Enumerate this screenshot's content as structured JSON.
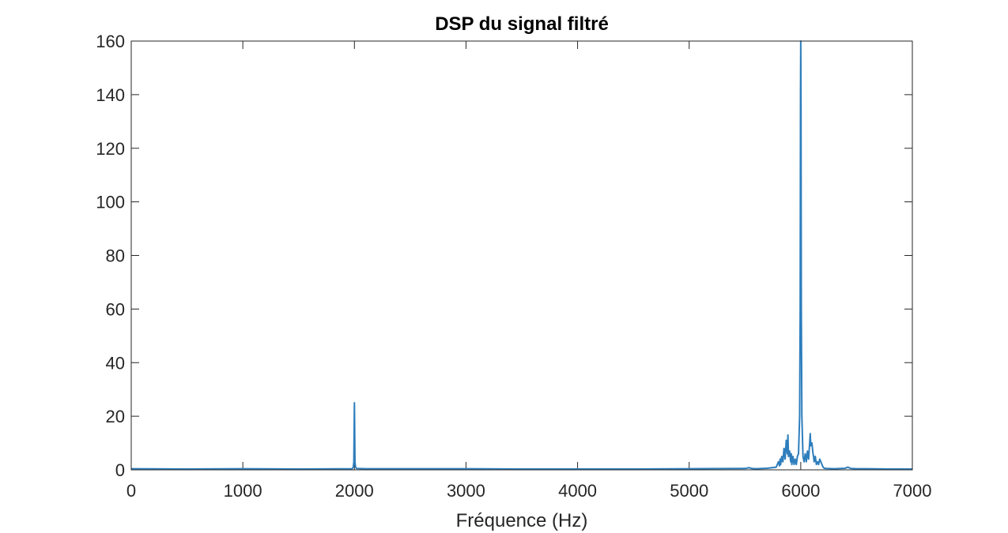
{
  "chart_data": {
    "type": "line",
    "title": "DSP du signal filtré",
    "xlabel": "Fréquence (Hz)",
    "ylabel": "",
    "xlim": [
      0,
      7000
    ],
    "ylim": [
      0,
      160
    ],
    "xticks": [
      0,
      1000,
      2000,
      3000,
      4000,
      5000,
      6000,
      7000
    ],
    "yticks": [
      0,
      20,
      40,
      60,
      80,
      100,
      120,
      140,
      160
    ],
    "grid": false,
    "series_color": "#2e7ebc",
    "series": [
      {
        "x": [
          0,
          500,
          1000,
          1500,
          1980,
          1990,
          1995,
          2000,
          2005,
          2010,
          2020,
          2100,
          2500,
          3000,
          3500,
          4000,
          4500,
          5000,
          5500,
          5540,
          5560,
          5600,
          5700,
          5780,
          5800,
          5810,
          5815,
          5820,
          5830,
          5840,
          5850,
          5860,
          5870,
          5880,
          5885,
          5890,
          5900,
          5910,
          5915,
          5920,
          5930,
          5940,
          5950,
          5960,
          5970,
          5980,
          5990,
          5995,
          5998,
          6000,
          6002,
          6005,
          6010,
          6020,
          6030,
          6040,
          6050,
          6060,
          6070,
          6080,
          6085,
          6090,
          6100,
          6110,
          6115,
          6120,
          6130,
          6140,
          6150,
          6160,
          6170,
          6180,
          6190,
          6200,
          6210,
          6230,
          6300,
          6400,
          6420,
          6450,
          6500,
          6600,
          6800,
          7000
        ],
        "values": [
          0.4,
          0.3,
          0.4,
          0.3,
          0.4,
          1.0,
          3.0,
          25.0,
          3.0,
          1.0,
          0.5,
          0.4,
          0.4,
          0.4,
          0.3,
          0.3,
          0.3,
          0.4,
          0.5,
          0.8,
          0.5,
          0.4,
          0.6,
          1.0,
          3.0,
          1.5,
          4.0,
          2.0,
          5.0,
          3.0,
          8.0,
          4.0,
          11.0,
          6.0,
          13.0,
          5.0,
          7.0,
          3.0,
          6.0,
          2.0,
          5.0,
          2.0,
          4.0,
          2.0,
          5.0,
          6.0,
          20.0,
          60.0,
          140.0,
          160.0,
          140.0,
          60.0,
          20.0,
          5.0,
          3.0,
          6.0,
          3.0,
          7.0,
          4.0,
          10.0,
          13.5,
          9.0,
          10.0,
          6.0,
          5.0,
          3.0,
          5.0,
          2.0,
          3.0,
          2.0,
          4.0,
          3.0,
          2.0,
          1.0,
          0.6,
          0.5,
          0.4,
          0.6,
          1.0,
          0.5,
          0.4,
          0.4,
          0.3,
          0.3
        ]
      }
    ]
  }
}
